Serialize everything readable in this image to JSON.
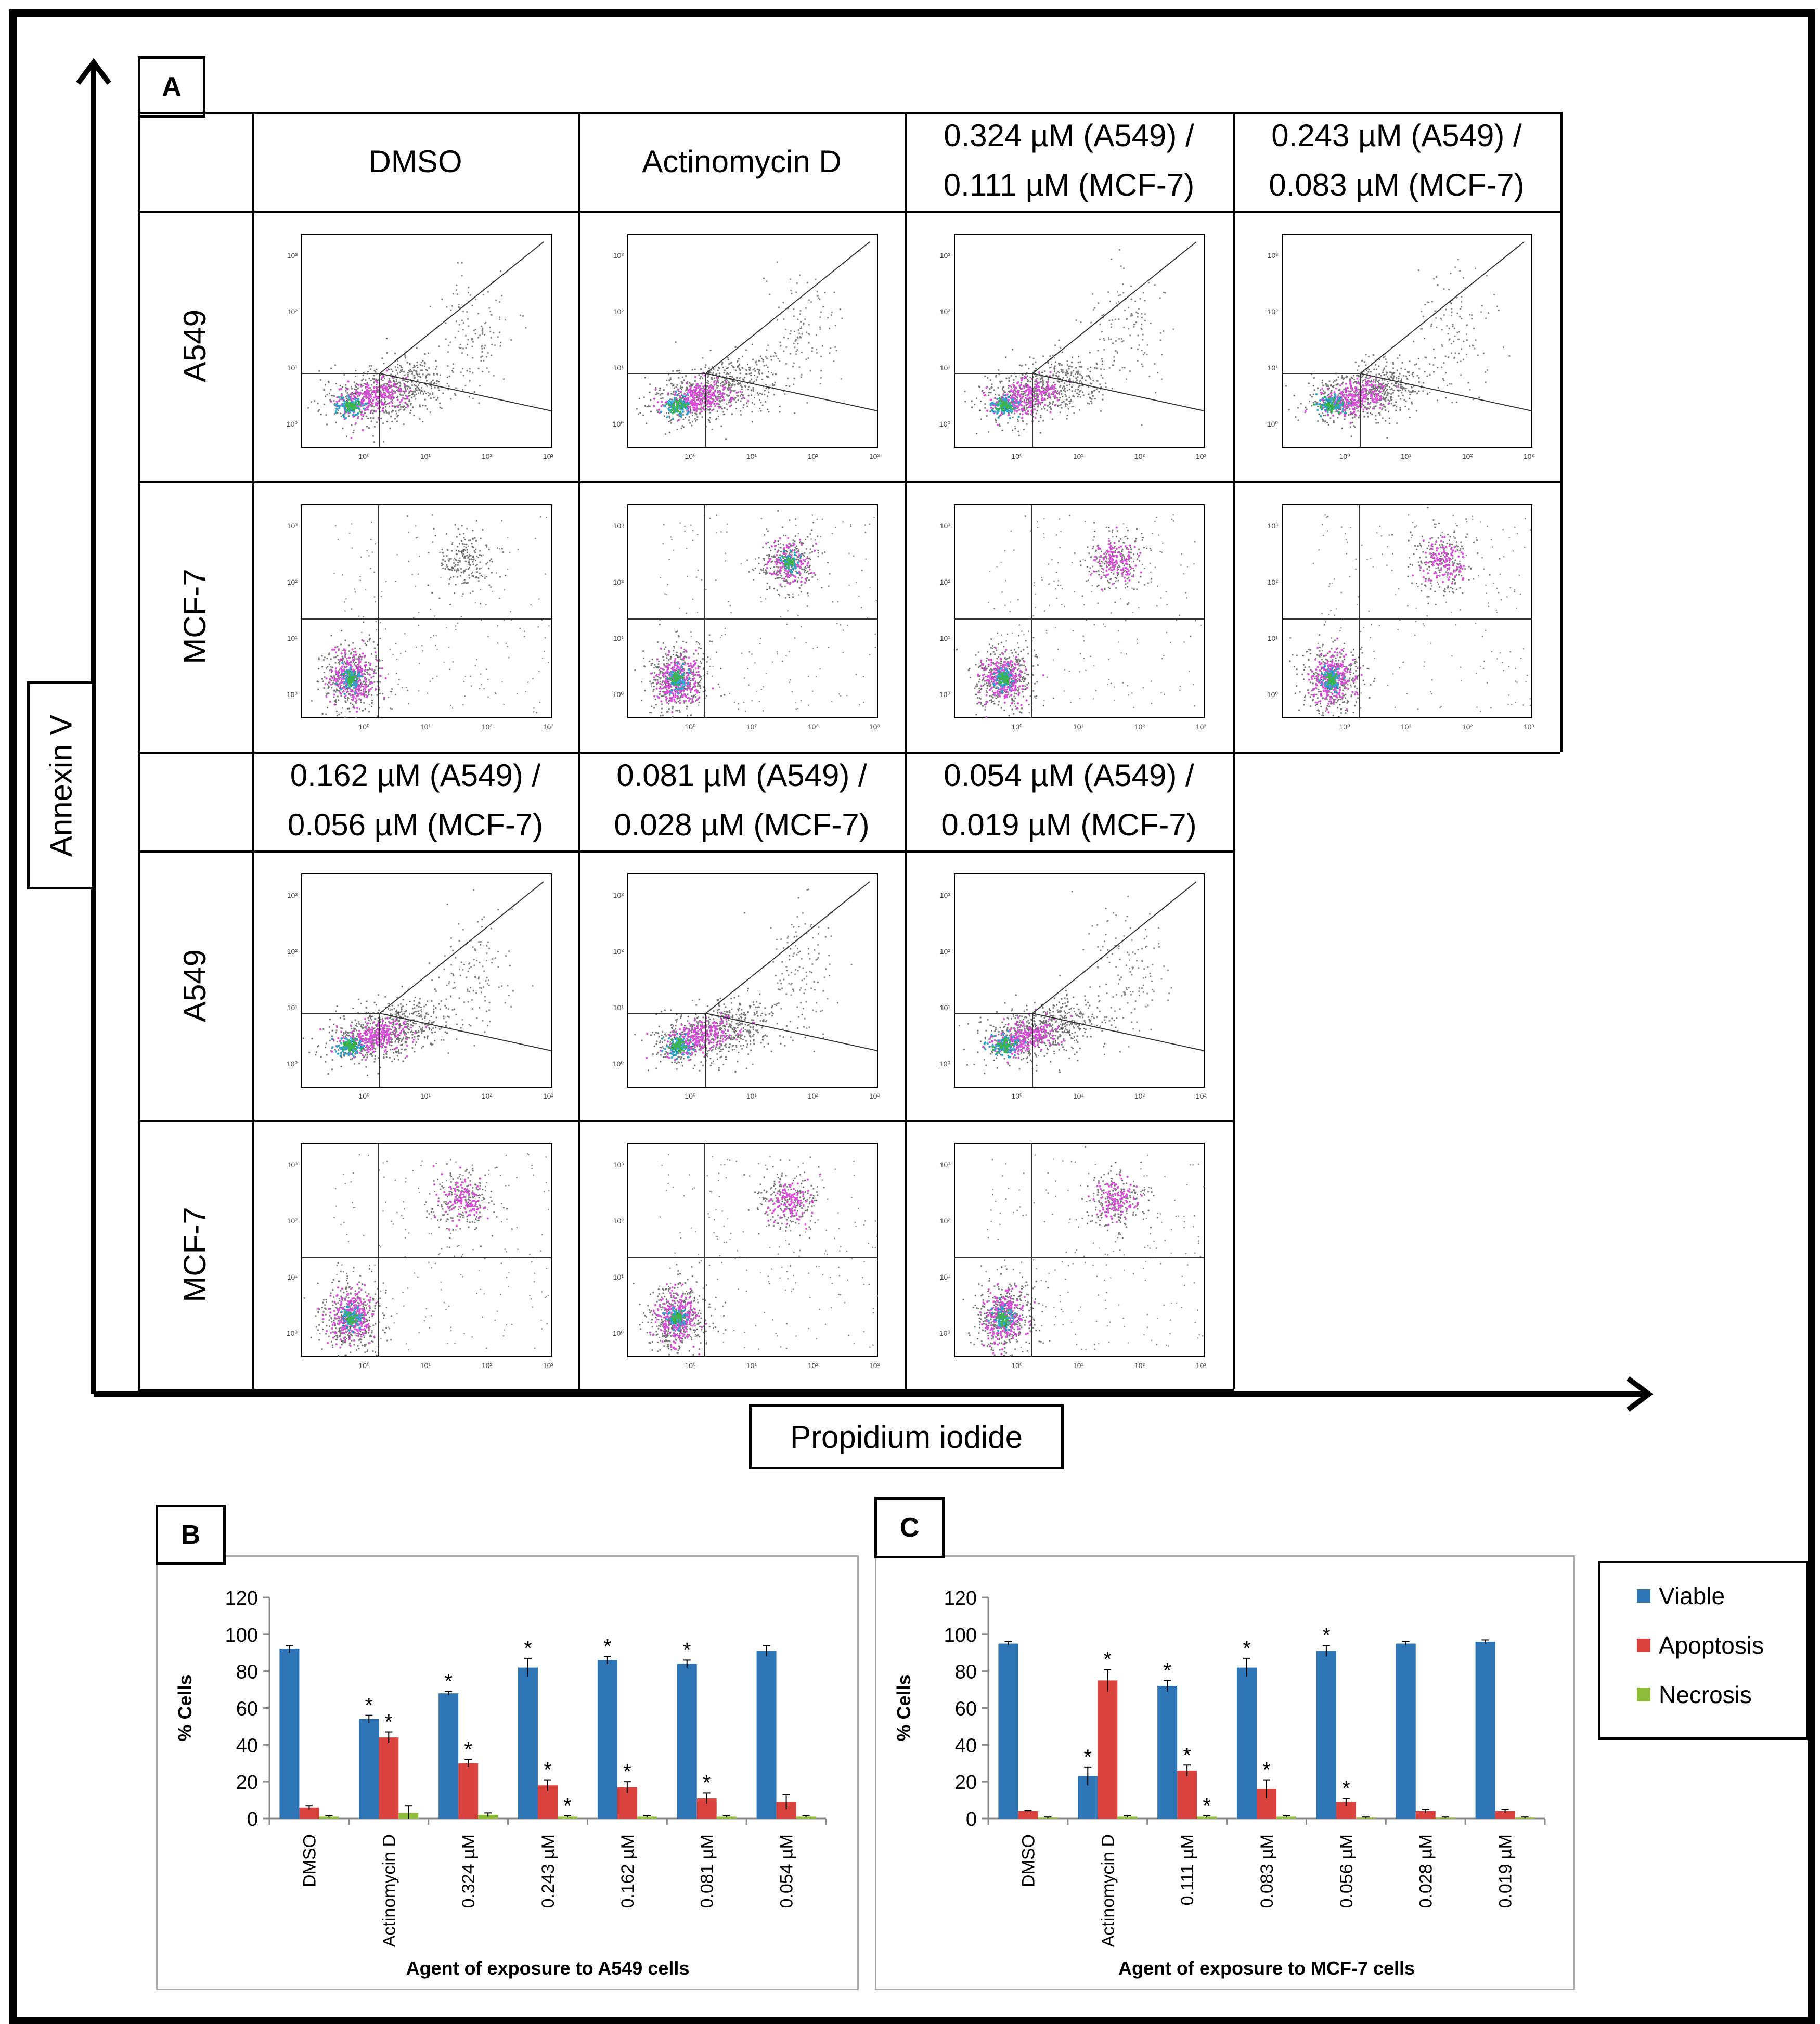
{
  "panel_a": {
    "label": "A",
    "y_axis_label": "Annexin V",
    "x_axis_label": "Propidium iodide",
    "top_headers": [
      "DMSO",
      "Actinomycin D",
      "0.324 µM (A549) /",
      "0.111 µM (MCF-7)",
      "0.243 µM (A549) /",
      "0.083 µM (MCF-7)"
    ],
    "bottom_headers": [
      "0.162 µM (A549) /",
      "0.056 µM (MCF-7)",
      "0.081 µM (A549) /",
      "0.028 µM (MCF-7)",
      "0.054 µM (A549) /",
      "0.019 µM (MCF-7)"
    ],
    "row_labels": [
      "A549",
      "MCF-7",
      "A549",
      "MCF-7"
    ],
    "ticks_y": [
      "10⁰",
      "10¹",
      "10²",
      "10³"
    ],
    "ticks_x": [
      "10⁰",
      "10¹",
      "10²",
      "10³"
    ]
  },
  "panel_b": {
    "label": "B"
  },
  "panel_c": {
    "label": "C"
  },
  "legend": [
    {
      "name": "Viable",
      "color": "#2e75b6"
    },
    {
      "name": "Apoptosis",
      "color": "#d9423d"
    },
    {
      "name": "Necrosis",
      "color": "#8fbc3a"
    }
  ],
  "chart_data": [
    {
      "type": "bar",
      "panel": "B",
      "ylabel": "% Cells",
      "xlabel": "Agent of exposure to A549 cells",
      "ylim": [
        0,
        120
      ],
      "yticks": [
        0,
        20,
        40,
        60,
        80,
        100,
        120
      ],
      "categories": [
        "DMSO",
        "Actinomycin D",
        "0.324 µM",
        "0.243 µM",
        "0.162 µM",
        "0.081 µM",
        "0.054 µM"
      ],
      "series": [
        {
          "name": "Viable",
          "color": "#2e75b6",
          "values": [
            92,
            54,
            68,
            82,
            86,
            84,
            91
          ],
          "errors": [
            2,
            2,
            1,
            5,
            2,
            2,
            3
          ],
          "significant": [
            false,
            true,
            true,
            true,
            true,
            true,
            false
          ]
        },
        {
          "name": "Apoptosis",
          "color": "#d9423d",
          "values": [
            6,
            44,
            30,
            18,
            17,
            11,
            9
          ],
          "errors": [
            1,
            3,
            2,
            3,
            3,
            3,
            4
          ],
          "significant": [
            false,
            true,
            true,
            true,
            true,
            true,
            false
          ]
        },
        {
          "name": "Necrosis",
          "color": "#8fbc3a",
          "values": [
            1,
            3,
            2,
            1,
            1,
            1,
            1
          ],
          "errors": [
            0.5,
            4,
            1,
            0.5,
            0.5,
            0.5,
            0.5
          ],
          "significant": [
            false,
            false,
            false,
            true,
            false,
            false,
            false
          ]
        }
      ],
      "grid": false,
      "star": "*"
    },
    {
      "type": "bar",
      "panel": "C",
      "ylabel": "% Cells",
      "xlabel": "Agent of exposure to MCF-7 cells",
      "ylim": [
        0,
        120
      ],
      "yticks": [
        0,
        20,
        40,
        60,
        80,
        100,
        120
      ],
      "categories": [
        "DMSO",
        "Actinomycin D",
        "0.111 µM",
        "0.083 µM",
        "0.056 µM",
        "0.028 µM",
        "0.019 µM"
      ],
      "series": [
        {
          "name": "Viable",
          "color": "#2e75b6",
          "values": [
            95,
            23,
            72,
            82,
            91,
            95,
            96
          ],
          "errors": [
            1,
            5,
            3,
            5,
            3,
            1,
            1
          ],
          "significant": [
            false,
            true,
            true,
            true,
            true,
            false,
            false
          ]
        },
        {
          "name": "Apoptosis",
          "color": "#d9423d",
          "values": [
            4,
            75,
            26,
            16,
            9,
            4,
            4
          ],
          "errors": [
            0.5,
            6,
            3,
            5,
            2,
            1,
            1
          ],
          "significant": [
            false,
            true,
            true,
            true,
            true,
            false,
            false
          ]
        },
        {
          "name": "Necrosis",
          "color": "#8fbc3a",
          "values": [
            0.5,
            1,
            1,
            1,
            0.5,
            0.5,
            0.5
          ],
          "errors": [
            0.3,
            0.5,
            0.5,
            0.5,
            0.3,
            0.3,
            0.3
          ],
          "significant": [
            false,
            false,
            true,
            false,
            false,
            false,
            false
          ]
        }
      ],
      "grid": false,
      "star": "*"
    }
  ]
}
